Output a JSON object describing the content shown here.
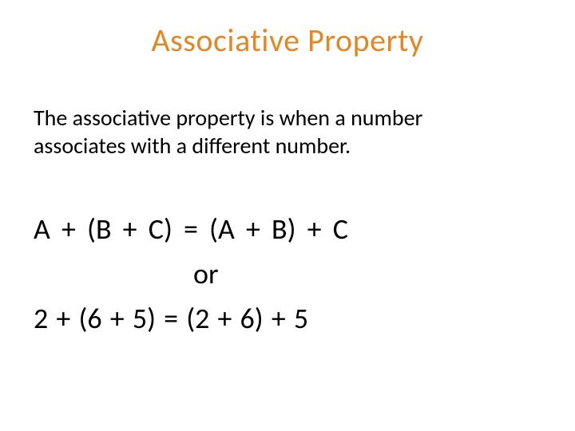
{
  "colors": {
    "title": "#e08726",
    "body": "#000000",
    "background": "#ffffff"
  },
  "typography": {
    "title_fontsize": 40,
    "definition_fontsize": 28,
    "equation_fontsize": 36,
    "font_family": "Calibri"
  },
  "title": "Associative Property",
  "definition": "The associative property is when a number associates with a different number.",
  "equation": {
    "line1": "A  +  (B  +  C) = (A  +  B)  +  C",
    "or": "or",
    "line2": "2 + (6 + 5)  =  (2 + 6) + 5"
  }
}
